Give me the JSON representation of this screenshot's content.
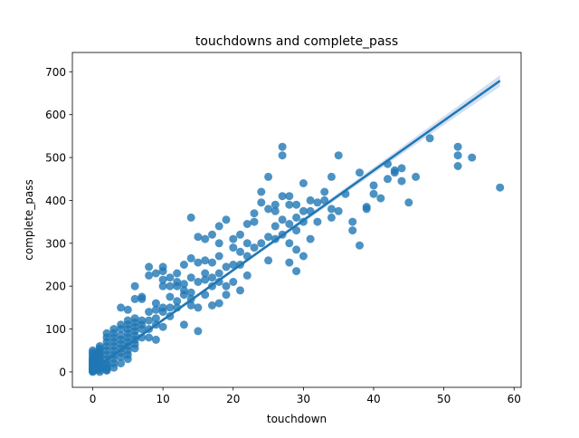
{
  "chart_data": {
    "type": "scatter",
    "title": "touchdowns and complete_pass",
    "xlabel": "touchdown",
    "ylabel": "complete_pass",
    "xlim": [
      -2.9,
      61
    ],
    "ylim": [
      -36,
      745
    ],
    "xticks": [
      0,
      10,
      20,
      30,
      40,
      50,
      60
    ],
    "yticks": [
      0,
      100,
      200,
      300,
      400,
      500,
      600,
      700
    ],
    "grid": false,
    "legend": "none",
    "colors": {
      "points": "#1f77b4",
      "regression": "#1f77b4",
      "band": "#aec7e8"
    },
    "regression": {
      "x": [
        0,
        58
      ],
      "y": [
        5,
        679
      ]
    },
    "series": [
      {
        "points": [
          [
            0,
            2
          ],
          [
            0,
            5
          ],
          [
            0,
            8
          ],
          [
            0,
            12
          ],
          [
            0,
            15
          ],
          [
            0,
            20
          ],
          [
            0,
            25
          ],
          [
            0,
            30
          ],
          [
            0,
            35
          ],
          [
            0,
            40
          ],
          [
            0,
            45
          ],
          [
            0,
            50
          ],
          [
            0,
            0
          ],
          [
            0,
            3
          ],
          [
            0,
            10
          ],
          [
            0,
            18
          ],
          [
            0,
            22
          ],
          [
            0,
            28
          ],
          [
            0.5,
            5
          ],
          [
            0.5,
            15
          ],
          [
            0.5,
            25
          ],
          [
            0.5,
            35
          ],
          [
            0.5,
            45
          ],
          [
            1,
            0
          ],
          [
            1,
            5
          ],
          [
            1,
            10
          ],
          [
            1,
            15
          ],
          [
            1,
            20
          ],
          [
            1,
            25
          ],
          [
            1,
            30
          ],
          [
            1,
            35
          ],
          [
            1,
            40
          ],
          [
            1,
            45
          ],
          [
            1,
            50
          ],
          [
            1,
            55
          ],
          [
            1,
            60
          ],
          [
            2,
            5
          ],
          [
            2,
            10
          ],
          [
            2,
            20
          ],
          [
            2,
            30
          ],
          [
            2,
            40
          ],
          [
            2,
            50
          ],
          [
            2,
            60
          ],
          [
            2,
            70
          ],
          [
            2,
            80
          ],
          [
            2,
            90
          ],
          [
            2,
            3
          ],
          [
            2,
            15
          ],
          [
            3,
            20
          ],
          [
            3,
            30
          ],
          [
            3,
            40
          ],
          [
            3,
            50
          ],
          [
            3,
            60
          ],
          [
            3,
            70
          ],
          [
            3,
            80
          ],
          [
            3,
            90
          ],
          [
            3,
            100
          ],
          [
            3,
            10
          ],
          [
            4,
            35
          ],
          [
            4,
            45
          ],
          [
            4,
            55
          ],
          [
            4,
            65
          ],
          [
            4,
            75
          ],
          [
            4,
            85
          ],
          [
            4,
            100
          ],
          [
            4,
            110
          ],
          [
            4,
            150
          ],
          [
            4,
            20
          ],
          [
            5,
            40
          ],
          [
            5,
            50
          ],
          [
            5,
            60
          ],
          [
            5,
            70
          ],
          [
            5,
            80
          ],
          [
            5,
            90
          ],
          [
            5,
            100
          ],
          [
            5,
            110
          ],
          [
            5,
            120
          ],
          [
            5,
            145
          ],
          [
            5,
            30
          ],
          [
            6,
            65
          ],
          [
            6,
            75
          ],
          [
            6,
            85
          ],
          [
            6,
            95
          ],
          [
            6,
            105
          ],
          [
            6,
            115
          ],
          [
            6,
            125
          ],
          [
            6,
            170
          ],
          [
            6,
            200
          ],
          [
            6,
            55
          ],
          [
            7,
            80
          ],
          [
            7,
            100
          ],
          [
            7,
            110
          ],
          [
            7,
            120
          ],
          [
            7,
            170
          ],
          [
            7,
            175
          ],
          [
            8,
            80
          ],
          [
            8,
            100
          ],
          [
            8,
            120
          ],
          [
            8,
            140
          ],
          [
            8,
            225
          ],
          [
            8,
            245
          ],
          [
            9,
            75
          ],
          [
            9,
            110
          ],
          [
            9,
            125
          ],
          [
            9,
            145
          ],
          [
            9,
            160
          ],
          [
            9,
            230
          ],
          [
            10,
            105
          ],
          [
            10,
            140
          ],
          [
            10,
            150
          ],
          [
            10,
            200
          ],
          [
            10,
            215
          ],
          [
            10,
            235
          ],
          [
            10,
            245
          ],
          [
            11,
            130
          ],
          [
            11,
            150
          ],
          [
            11,
            175
          ],
          [
            11,
            200
          ],
          [
            11,
            220
          ],
          [
            12,
            150
          ],
          [
            12,
            165
          ],
          [
            12,
            200
          ],
          [
            12,
            210
          ],
          [
            12,
            230
          ],
          [
            13,
            110
          ],
          [
            13,
            180
          ],
          [
            13,
            190
          ],
          [
            13,
            205
          ],
          [
            13,
            250
          ],
          [
            14,
            155
          ],
          [
            14,
            170
          ],
          [
            14,
            185
          ],
          [
            14,
            220
          ],
          [
            14,
            265
          ],
          [
            14,
            360
          ],
          [
            15,
            95
          ],
          [
            15,
            150
          ],
          [
            15,
            210
          ],
          [
            15,
            255
          ],
          [
            15,
            315
          ],
          [
            16,
            180
          ],
          [
            16,
            215
          ],
          [
            16,
            230
          ],
          [
            16,
            260
          ],
          [
            16,
            310
          ],
          [
            17,
            155
          ],
          [
            17,
            200
          ],
          [
            17,
            220
          ],
          [
            17,
            255
          ],
          [
            17,
            320
          ],
          [
            18,
            160
          ],
          [
            18,
            210
          ],
          [
            18,
            230
          ],
          [
            18,
            270
          ],
          [
            18,
            300
          ],
          [
            18,
            340
          ],
          [
            19,
            180
          ],
          [
            19,
            200
          ],
          [
            19,
            245
          ],
          [
            19,
            355
          ],
          [
            20,
            210
          ],
          [
            20,
            250
          ],
          [
            20,
            290
          ],
          [
            20,
            310
          ],
          [
            21,
            190
          ],
          [
            21,
            250
          ],
          [
            21,
            280
          ],
          [
            21,
            320
          ],
          [
            22,
            225
          ],
          [
            22,
            270
          ],
          [
            22,
            300
          ],
          [
            22,
            345
          ],
          [
            23,
            290
          ],
          [
            23,
            350
          ],
          [
            23,
            370
          ],
          [
            24,
            300
          ],
          [
            24,
            395
          ],
          [
            24,
            420
          ],
          [
            25,
            260
          ],
          [
            25,
            315
          ],
          [
            25,
            380
          ],
          [
            25,
            455
          ],
          [
            26,
            310
          ],
          [
            26,
            340
          ],
          [
            26,
            375
          ],
          [
            26,
            390
          ],
          [
            27,
            355
          ],
          [
            27,
            505
          ],
          [
            27,
            525
          ],
          [
            27,
            410
          ],
          [
            27,
            320
          ],
          [
            28,
            255
          ],
          [
            28,
            300
          ],
          [
            28,
            345
          ],
          [
            28,
            390
          ],
          [
            28,
            410
          ],
          [
            29,
            235
          ],
          [
            29,
            285
          ],
          [
            29,
            330
          ],
          [
            29,
            360
          ],
          [
            29,
            390
          ],
          [
            30,
            270
          ],
          [
            30,
            350
          ],
          [
            30,
            375
          ],
          [
            30,
            440
          ],
          [
            31,
            310
          ],
          [
            31,
            375
          ],
          [
            31,
            400
          ],
          [
            32,
            350
          ],
          [
            32,
            395
          ],
          [
            33,
            400
          ],
          [
            33,
            420
          ],
          [
            34,
            360
          ],
          [
            34,
            380
          ],
          [
            34,
            455
          ],
          [
            35,
            375
          ],
          [
            35,
            505
          ],
          [
            36,
            415
          ],
          [
            37,
            330
          ],
          [
            37,
            350
          ],
          [
            38,
            295
          ],
          [
            38,
            465
          ],
          [
            39,
            385
          ],
          [
            39,
            380
          ],
          [
            40,
            415
          ],
          [
            40,
            435
          ],
          [
            41,
            405
          ],
          [
            42,
            450
          ],
          [
            42,
            485
          ],
          [
            43,
            465
          ],
          [
            43,
            470
          ],
          [
            44,
            445
          ],
          [
            44,
            475
          ],
          [
            45,
            395
          ],
          [
            46,
            455
          ],
          [
            48,
            545
          ],
          [
            52,
            480
          ],
          [
            52,
            505
          ],
          [
            52,
            525
          ],
          [
            54,
            500
          ],
          [
            58,
            430
          ]
        ]
      }
    ]
  }
}
